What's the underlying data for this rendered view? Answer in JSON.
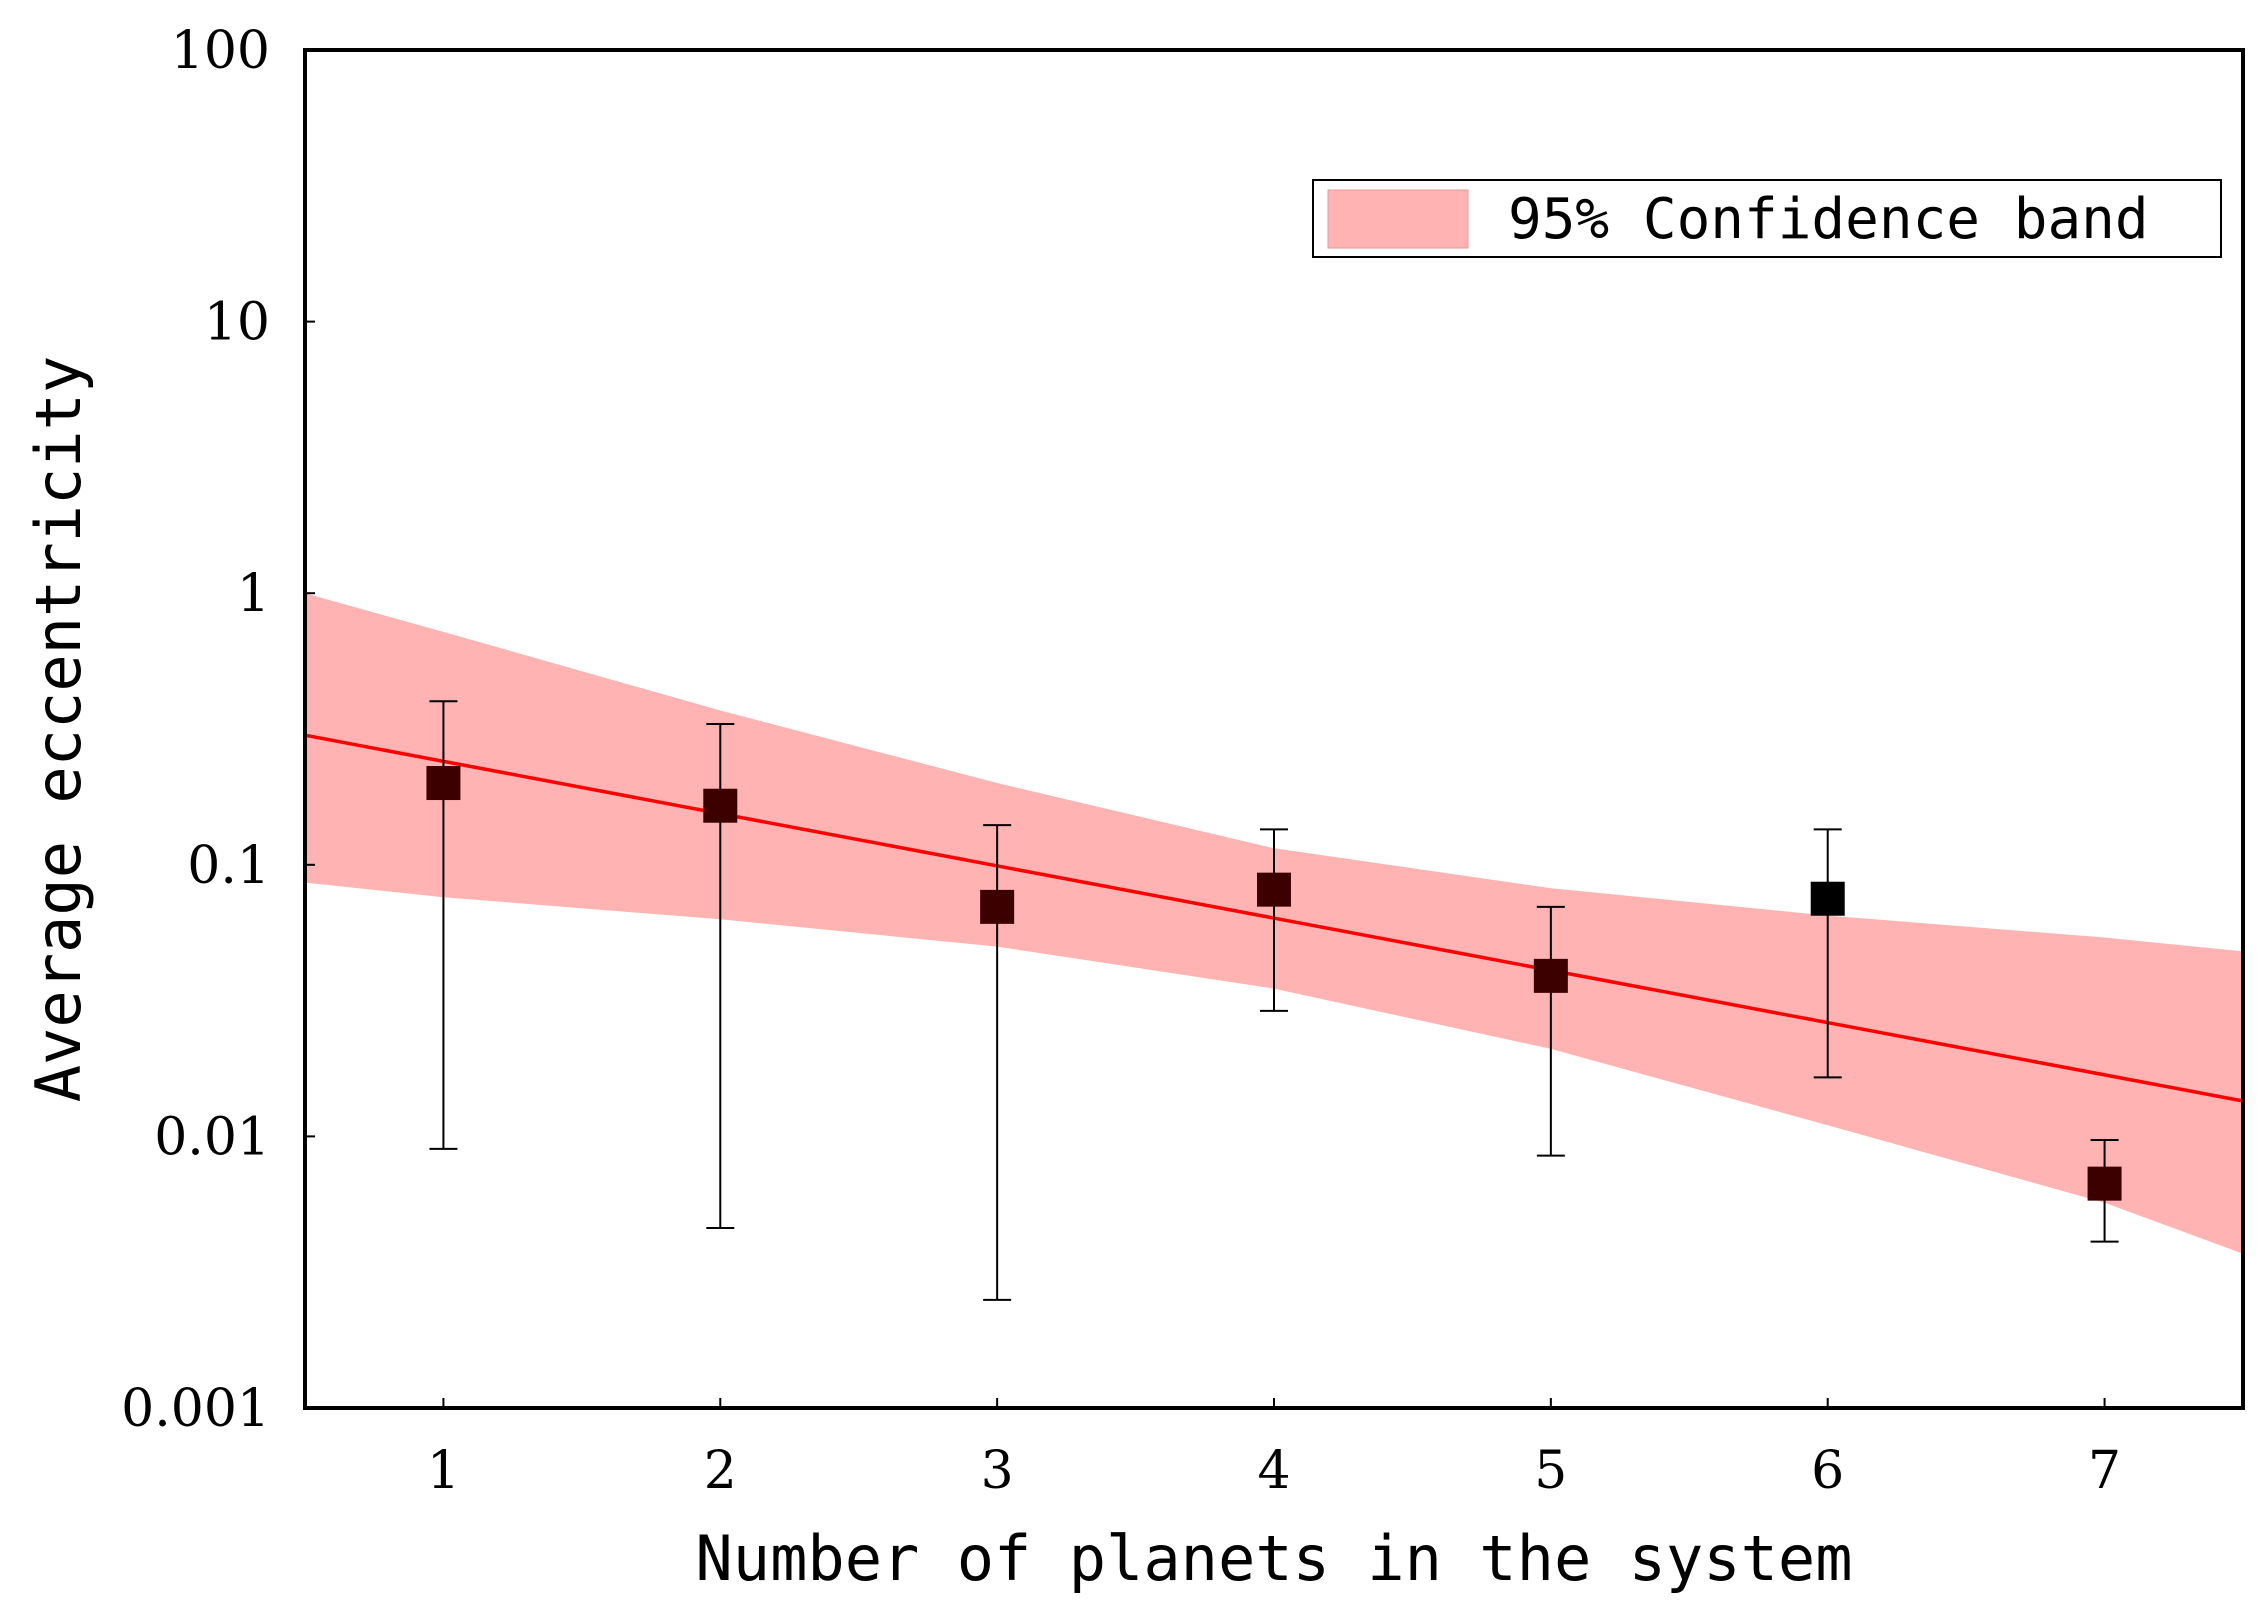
{
  "chart_data": {
    "type": "scatter",
    "title": "",
    "xlabel": "Number of planets in the system",
    "ylabel": "Average eccentricity",
    "xlim": [
      0.5,
      7.5
    ],
    "ylim": [
      0.001,
      100
    ],
    "yscale": "log",
    "grid": false,
    "xticks": [
      1,
      2,
      3,
      4,
      5,
      6,
      7
    ],
    "xtick_labels": [
      "1",
      "2",
      "3",
      "4",
      "5",
      "6",
      "7"
    ],
    "yticks": [
      0.001,
      0.01,
      0.1,
      1,
      10,
      100
    ],
    "ytick_labels": [
      "0.001",
      "0.01",
      "0.1",
      "1",
      "10",
      "100"
    ],
    "points": [
      {
        "x": 1,
        "y": 0.2,
        "err_low": 0.009,
        "err_high": 0.4,
        "color": "#3d0000"
      },
      {
        "x": 2,
        "y": 0.165,
        "err_low": 0.0046,
        "err_high": 0.33,
        "color": "#3d0000"
      },
      {
        "x": 3,
        "y": 0.07,
        "err_low": 0.0025,
        "err_high": 0.14,
        "color": "#3d0000"
      },
      {
        "x": 4,
        "y": 0.081,
        "err_low": 0.029,
        "err_high": 0.135,
        "color": "#3d0000"
      },
      {
        "x": 5,
        "y": 0.039,
        "err_low": 0.0085,
        "err_high": 0.07,
        "color": "#3d0000"
      },
      {
        "x": 6,
        "y": 0.075,
        "err_low": 0.0165,
        "err_high": 0.135,
        "color": "#000000"
      },
      {
        "x": 7,
        "y": 0.0067,
        "err_low": 0.0041,
        "err_high": 0.0097,
        "color": "#3d0000"
      }
    ],
    "fit_line": {
      "color": "#ff0000",
      "x": [
        0.5,
        7.5
      ],
      "y": [
        0.3,
        0.0135
      ]
    },
    "confidence_band": {
      "label": "95% Confidence band",
      "color": "#ffb3b3",
      "x": [
        0.5,
        1,
        2,
        3,
        4,
        5,
        6,
        7,
        7.5
      ],
      "upper": [
        1.0,
        0.72,
        0.37,
        0.2,
        0.115,
        0.082,
        0.065,
        0.054,
        0.048
      ],
      "lower": [
        0.086,
        0.076,
        0.063,
        0.05,
        0.035,
        0.021,
        0.011,
        0.0057,
        0.0037
      ]
    },
    "legend": {
      "position": "top-right",
      "entries": [
        {
          "label": "95% Confidence band",
          "color": "#ffb3b3"
        }
      ]
    }
  }
}
